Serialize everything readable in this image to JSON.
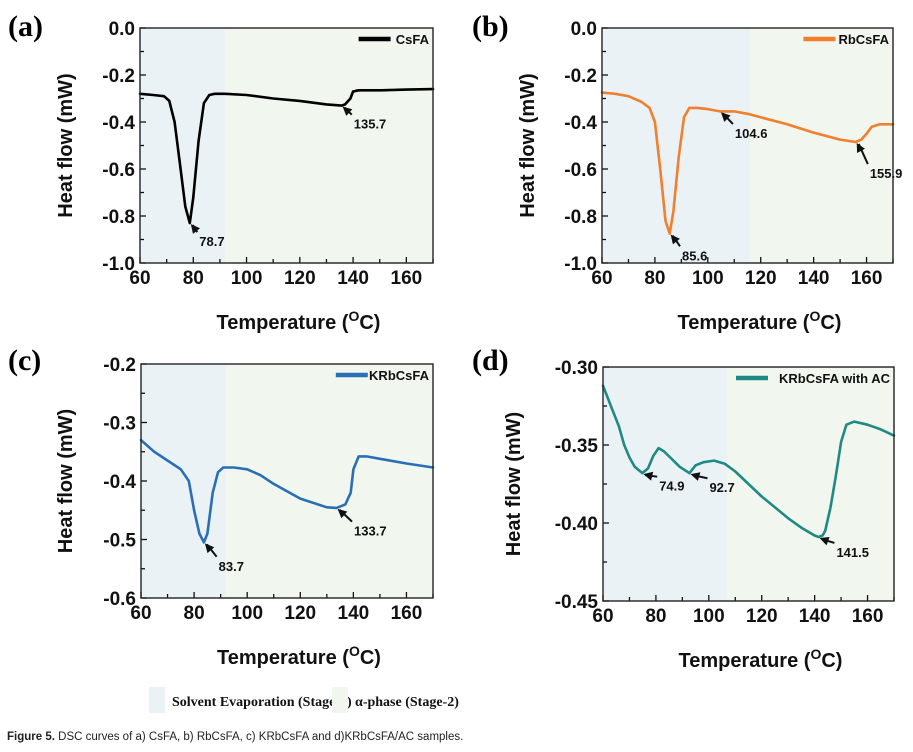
{
  "caption": {
    "label": "Figure 5.",
    "text": "DSC curves of a) CsFA, b) RbCsFA, c) KRbCsFA and d)KRbCsFA/AC samples."
  },
  "stage_legend": [
    {
      "name": "Solvent Evaporation (Stage-1)",
      "color": "#EAF2F6"
    },
    {
      "name": "α-phase (Stage-2)",
      "color": "#F1F6EE"
    }
  ],
  "chart_data": [
    {
      "type": "line",
      "panel": "(a)",
      "xlabel": "Temperature (°C)",
      "xlabel_main": "Temperature (",
      "xlabel_sup": "O",
      "xlabel_end": "C)",
      "ylabel": "Heat flow (mW)",
      "xlim": [
        60,
        170
      ],
      "ylim": [
        -1.0,
        0.0
      ],
      "xticks": [
        60,
        80,
        100,
        120,
        140,
        160
      ],
      "yticks": [
        0.0,
        -0.2,
        -0.4,
        -0.6,
        -0.8,
        -1.0
      ],
      "ytick_labels": [
        "0.0",
        "-0.2",
        "-0.4",
        "-0.6",
        "-0.8",
        "-1.0"
      ],
      "stage_boundary": 92,
      "legend": "top-right",
      "grid": false,
      "series": [
        {
          "name": "CsFA",
          "color": "#000000",
          "x": [
            60,
            65,
            69,
            71,
            73,
            75,
            77,
            78.7,
            80,
            82,
            84,
            86,
            88,
            92,
            100,
            110,
            120,
            130,
            135.7,
            137,
            139,
            140,
            142,
            150,
            160,
            170
          ],
          "y": [
            -0.28,
            -0.285,
            -0.29,
            -0.31,
            -0.4,
            -0.58,
            -0.76,
            -0.83,
            -0.72,
            -0.48,
            -0.32,
            -0.285,
            -0.28,
            -0.28,
            -0.285,
            -0.3,
            -0.31,
            -0.325,
            -0.33,
            -0.325,
            -0.3,
            -0.27,
            -0.265,
            -0.265,
            -0.262,
            -0.26
          ]
        }
      ],
      "annotations": [
        {
          "label": "78.7",
          "x": 78.7,
          "y": -0.83,
          "text_x": 83,
          "text_y": -0.92
        },
        {
          "label": "135.7",
          "x": 135.7,
          "y": -0.33,
          "text_x": 141,
          "text_y": -0.42
        }
      ]
    },
    {
      "type": "line",
      "panel": "(b)",
      "xlabel": "Temperature (°C)",
      "xlabel_main": "Temperature (",
      "xlabel_sup": "O",
      "xlabel_end": "C)",
      "ylabel": "Heat flow (mW)",
      "xlim": [
        60,
        170
      ],
      "ylim": [
        -1.0,
        0.0
      ],
      "xticks": [
        60,
        80,
        100,
        120,
        140,
        160
      ],
      "yticks": [
        0.0,
        -0.2,
        -0.4,
        -0.6,
        -0.8,
        -1.0
      ],
      "ytick_labels": [
        "0.0",
        "-0.2",
        "-0.4",
        "-0.6",
        "-0.8",
        "-1.0"
      ],
      "stage_boundary": 116,
      "legend": "top-right",
      "grid": false,
      "series": [
        {
          "name": "RbCsFA",
          "color": "#F07F2E",
          "x": [
            60,
            65,
            70,
            75,
            78,
            80,
            82,
            84,
            85.6,
            87,
            89,
            91,
            93,
            96,
            100,
            104.6,
            110,
            115,
            120,
            130,
            140,
            150,
            155.9,
            158,
            160,
            162,
            165,
            170
          ],
          "y": [
            -0.275,
            -0.28,
            -0.29,
            -0.315,
            -0.34,
            -0.4,
            -0.6,
            -0.82,
            -0.875,
            -0.78,
            -0.55,
            -0.38,
            -0.34,
            -0.34,
            -0.345,
            -0.355,
            -0.355,
            -0.365,
            -0.38,
            -0.41,
            -0.445,
            -0.475,
            -0.485,
            -0.475,
            -0.45,
            -0.42,
            -0.41,
            -0.41
          ]
        }
      ],
      "annotations": [
        {
          "label": "104.6",
          "x": 104.6,
          "y": -0.355,
          "text_x": 111,
          "text_y": -0.46
        },
        {
          "label": "85.6",
          "x": 85.6,
          "y": -0.875,
          "text_x": 91,
          "text_y": -0.98
        },
        {
          "label": "155.9",
          "x": 155.9,
          "y": -0.485,
          "text_x": 162,
          "text_y": -0.63
        }
      ]
    },
    {
      "type": "line",
      "panel": "(c)",
      "xlabel": "Temperature (°C)",
      "xlabel_main": "Temperature (",
      "xlabel_sup": "O",
      "xlabel_end": "C)",
      "ylabel": "Heat flow (mW)",
      "xlim": [
        60,
        170
      ],
      "ylim": [
        -0.6,
        -0.2
      ],
      "xticks": [
        60,
        80,
        100,
        120,
        140,
        160
      ],
      "yticks": [
        -0.2,
        -0.3,
        -0.4,
        -0.5,
        -0.6
      ],
      "ytick_labels": [
        "-0.2",
        "-0.3",
        "-0.4",
        "-0.5",
        "-0.6"
      ],
      "stage_boundary": 92,
      "legend": "top-right",
      "grid": false,
      "series": [
        {
          "name": "KRbCsFA",
          "color": "#2A6FB5",
          "x": [
            60,
            65,
            70,
            75,
            78,
            80,
            82,
            83.7,
            85,
            87,
            89,
            91,
            95,
            100,
            105,
            110,
            120,
            130,
            133.7,
            137,
            139,
            140,
            142,
            145,
            150,
            160,
            170
          ],
          "y": [
            -0.33,
            -0.35,
            -0.365,
            -0.38,
            -0.4,
            -0.45,
            -0.49,
            -0.505,
            -0.49,
            -0.42,
            -0.385,
            -0.377,
            -0.377,
            -0.38,
            -0.39,
            -0.405,
            -0.43,
            -0.445,
            -0.446,
            -0.44,
            -0.42,
            -0.38,
            -0.358,
            -0.358,
            -0.362,
            -0.37,
            -0.377
          ]
        }
      ],
      "annotations": [
        {
          "label": "83.7",
          "x": 83.7,
          "y": -0.505,
          "text_x": 90,
          "text_y": -0.55
        },
        {
          "label": "133.7",
          "x": 133.7,
          "y": -0.446,
          "text_x": 141,
          "text_y": -0.49
        }
      ]
    },
    {
      "type": "line",
      "panel": "(d)",
      "xlabel": "Temperature (°C)",
      "xlabel_main": "Temperature (",
      "xlabel_sup": "O",
      "xlabel_end": "C)",
      "ylabel": "Heat flow (mW)",
      "xlim": [
        60,
        170
      ],
      "ylim": [
        -0.45,
        -0.3
      ],
      "xticks": [
        60,
        80,
        100,
        120,
        140,
        160
      ],
      "yticks": [
        -0.3,
        -0.35,
        -0.4,
        -0.45
      ],
      "ytick_labels": [
        "-0.30",
        "-0.35",
        "-0.40",
        "-0.45"
      ],
      "stage_boundary": 107,
      "legend": "top-right",
      "grid": false,
      "series": [
        {
          "name": "KRbCsFA with AC",
          "color": "#1F8A82",
          "x": [
            60,
            63,
            66,
            68,
            70,
            72,
            74.9,
            77,
            79,
            81,
            83,
            86,
            89,
            92.7,
            95,
            98,
            102,
            106,
            110,
            115,
            120,
            125,
            130,
            135,
            140,
            141.5,
            143,
            144,
            146,
            148,
            150,
            152,
            155,
            160,
            165,
            170
          ],
          "y": [
            -0.312,
            -0.325,
            -0.338,
            -0.35,
            -0.358,
            -0.364,
            -0.368,
            -0.365,
            -0.357,
            -0.352,
            -0.354,
            -0.359,
            -0.364,
            -0.368,
            -0.363,
            -0.361,
            -0.36,
            -0.362,
            -0.367,
            -0.375,
            -0.383,
            -0.39,
            -0.397,
            -0.403,
            -0.408,
            -0.409,
            -0.408,
            -0.405,
            -0.39,
            -0.37,
            -0.348,
            -0.337,
            -0.335,
            -0.337,
            -0.34,
            -0.344
          ]
        }
      ],
      "annotations": [
        {
          "label": "74.9",
          "x": 74.9,
          "y": -0.368,
          "text_x": 82,
          "text_y": -0.378
        },
        {
          "label": "92.7",
          "x": 92.7,
          "y": -0.368,
          "text_x": 101,
          "text_y": -0.379
        },
        {
          "label": "141.5",
          "x": 141.5,
          "y": -0.409,
          "text_x": 149,
          "text_y": -0.4205
        }
      ]
    }
  ]
}
